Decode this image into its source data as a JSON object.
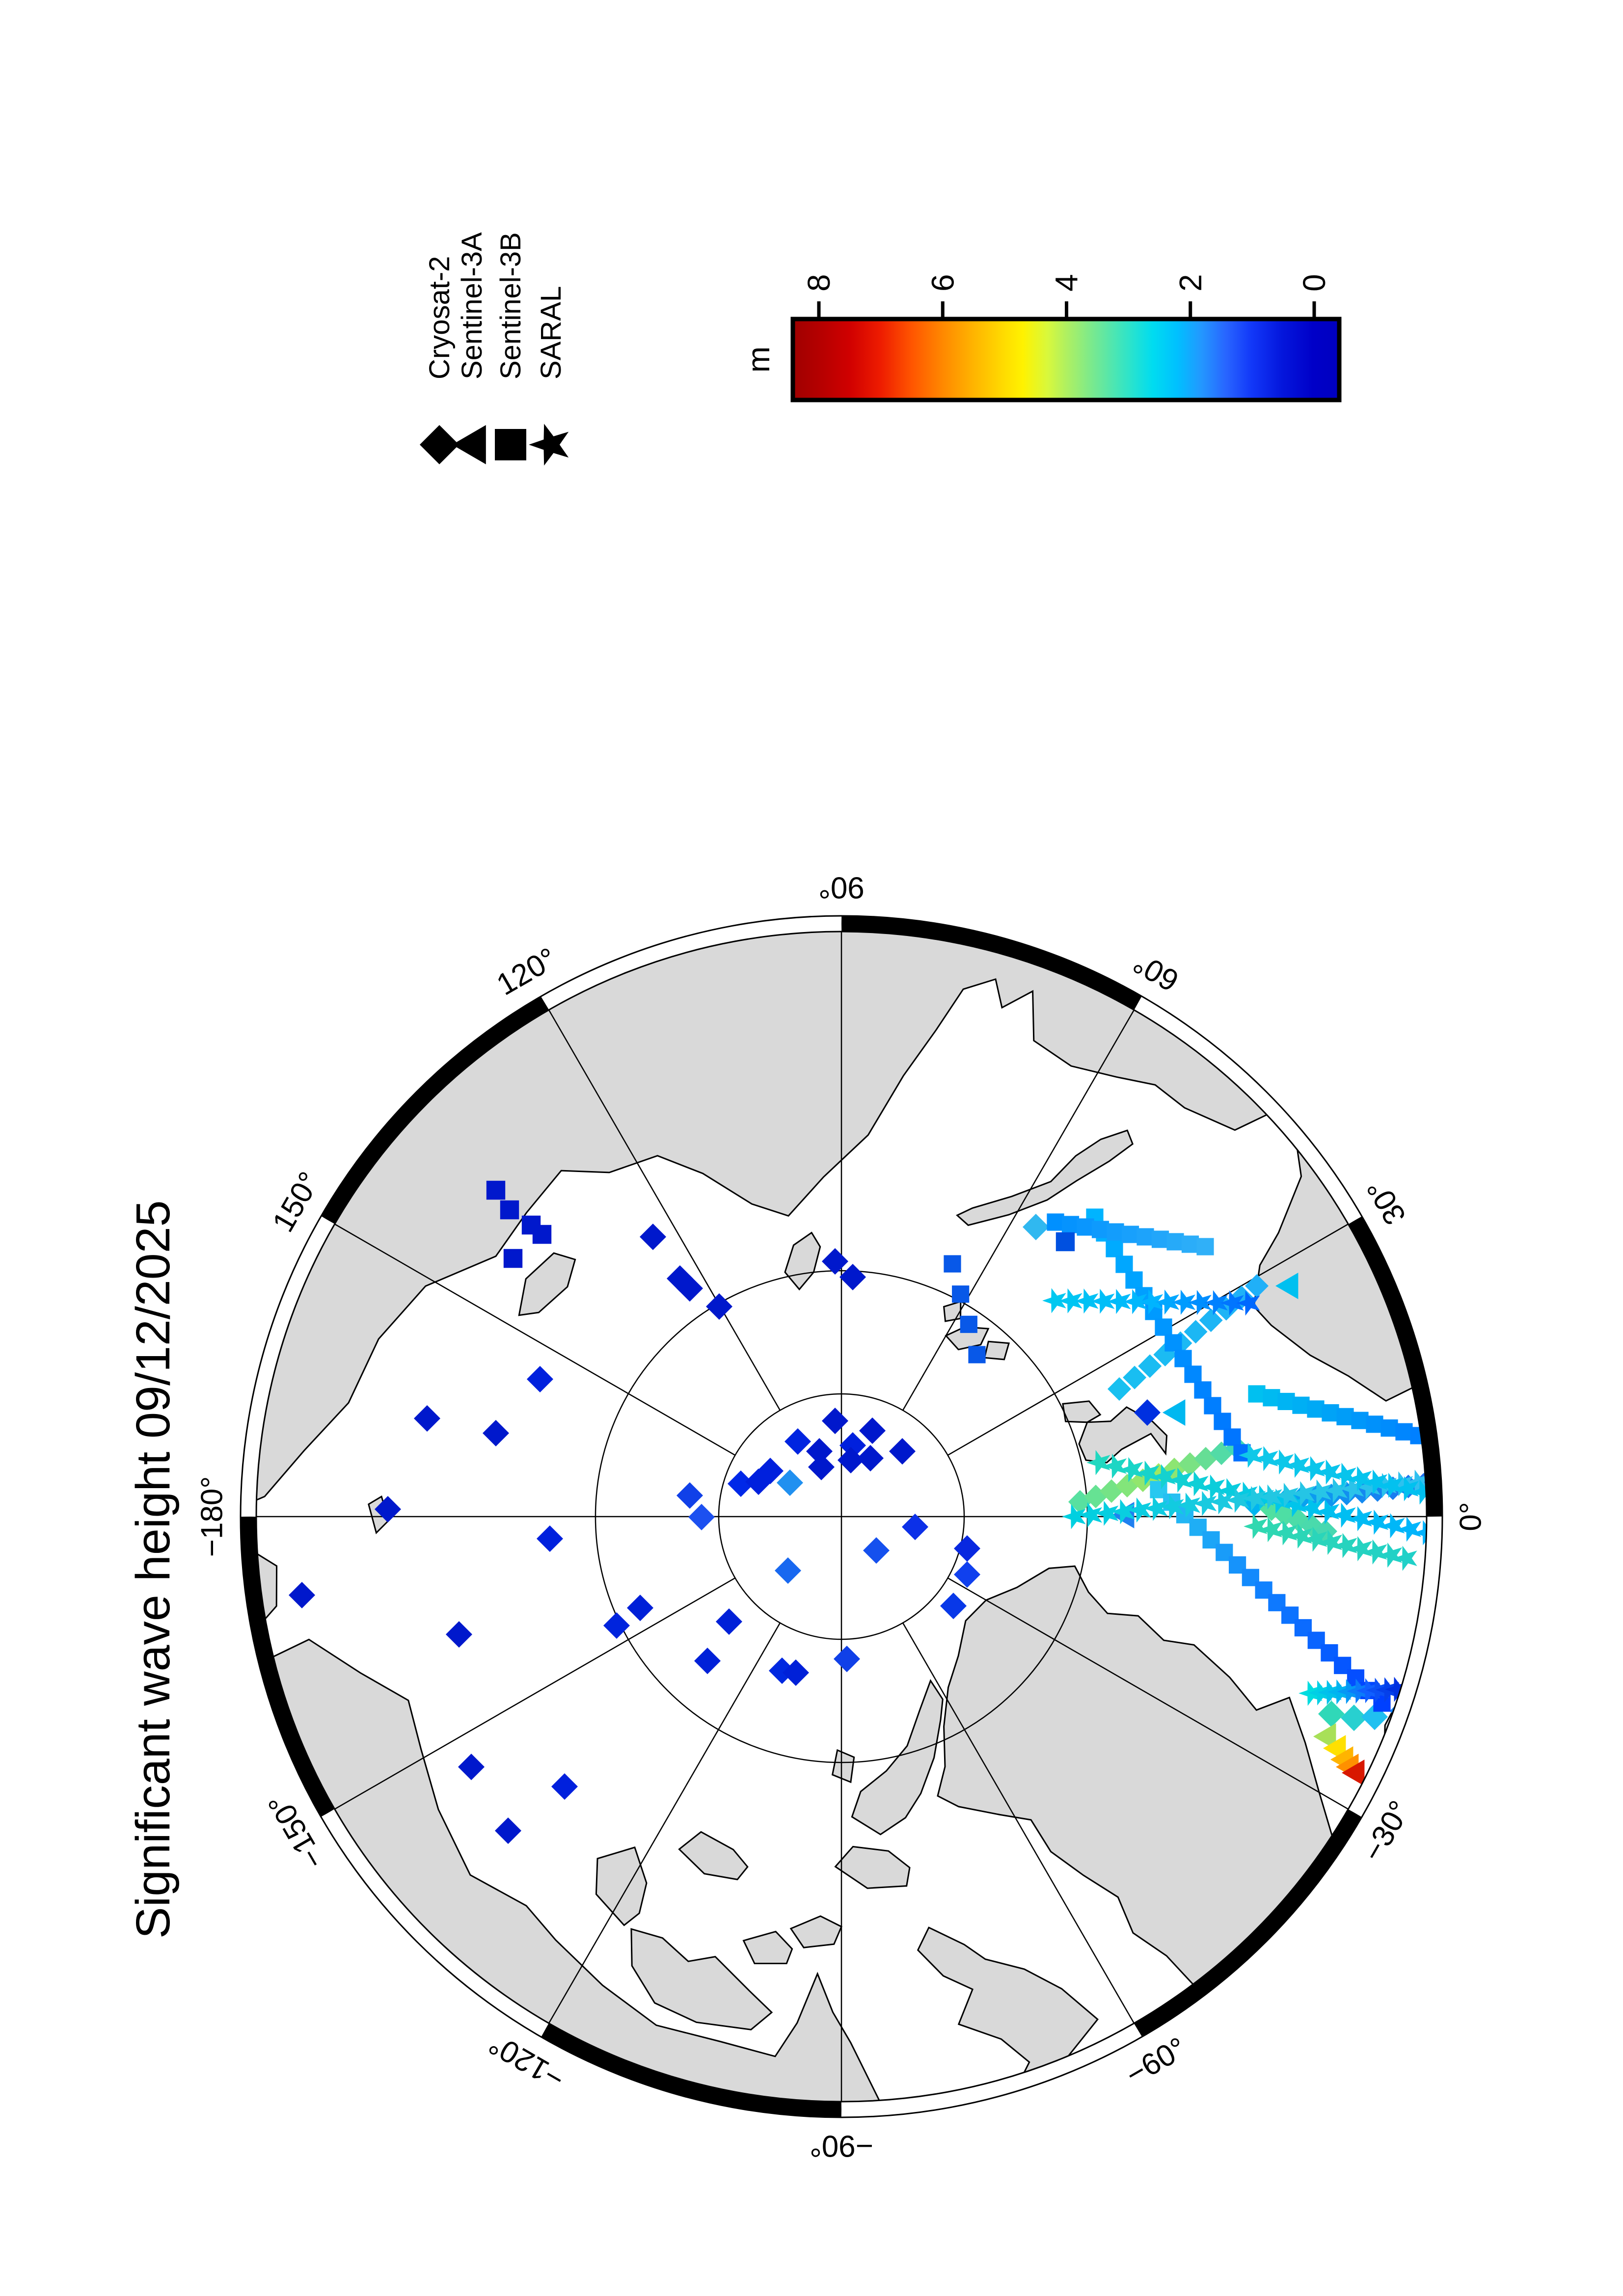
{
  "title": "Significant wave height 09/12/2025",
  "legend": {
    "entries": [
      {
        "label": "Cryosat-2",
        "symbol": "diamond"
      },
      {
        "label": "Sentinel-3A",
        "symbol": "triangle"
      },
      {
        "label": "Sentinel-3B",
        "symbol": "square"
      },
      {
        "label": "SARAL",
        "symbol": "star"
      }
    ]
  },
  "colorbar": {
    "unit": "m",
    "ticks": [
      "8",
      "6",
      "4",
      "2",
      "0"
    ],
    "tick_values": [
      8,
      6,
      4,
      2,
      0
    ],
    "value_min": 0,
    "value_max": 8,
    "stops": [
      [
        8.4,
        "#a00000"
      ],
      [
        8.0,
        "#b40000"
      ],
      [
        7.5,
        "#d00000"
      ],
      [
        7.0,
        "#ee1c00"
      ],
      [
        6.5,
        "#ff5500"
      ],
      [
        6.0,
        "#ff8800"
      ],
      [
        5.5,
        "#ffb400"
      ],
      [
        5.0,
        "#ffdc00"
      ],
      [
        4.7,
        "#fff200"
      ],
      [
        4.3,
        "#d8f83c"
      ],
      [
        4.0,
        "#b0f060"
      ],
      [
        3.5,
        "#70e896"
      ],
      [
        3.0,
        "#30e4c8"
      ],
      [
        2.6,
        "#00dcf0"
      ],
      [
        2.2,
        "#00c0ff"
      ],
      [
        1.8,
        "#2496ff"
      ],
      [
        1.4,
        "#2864ff"
      ],
      [
        1.0,
        "#1238f8"
      ],
      [
        0.5,
        "#0416dc"
      ],
      [
        0.0,
        "#0000c8"
      ],
      [
        -0.4,
        "#0000c0"
      ]
    ]
  },
  "map": {
    "longitude_labels": [
      {
        "text": "90°",
        "lon": 90,
        "rotation": -90
      },
      {
        "text": "120°",
        "lon": 120,
        "rotation": 60
      },
      {
        "text": "150°",
        "lon": 150,
        "rotation": 30
      },
      {
        "text": "−180°",
        "lon": 180,
        "rotation": 0
      },
      {
        "text": "−150°",
        "lon": -150,
        "rotation": -30
      },
      {
        "text": "−120°",
        "lon": -120,
        "rotation": -60
      },
      {
        "text": "−90°",
        "lon": -90,
        "rotation": -90
      },
      {
        "text": "−60°",
        "lon": -60,
        "rotation": 60
      },
      {
        "text": "−30°",
        "lon": -30,
        "rotation": 30
      },
      {
        "text": "0°",
        "lon": 0,
        "rotation": 0
      },
      {
        "text": "30°",
        "lon": 30,
        "rotation": -30
      },
      {
        "text": "60°",
        "lon": 60,
        "rotation": -60
      }
    ],
    "latitude_circles_deg": [
      85,
      80
    ],
    "rim_latitude_deg": 66.6
  },
  "chart_data": {
    "type": "scatter",
    "projection": "north_polar_stereographic",
    "units": "m (significant wave height), canvas px for positions",
    "series": [
      {
        "name": "Cryosat-2",
        "symbol": "diamond",
        "points": [
          [
            1783,
            1701,
            "#0018cc"
          ],
          [
            1763,
            1777,
            "#0018cc"
          ],
          [
            1733,
            1737,
            "#0020dd"
          ],
          [
            1721,
            1669,
            "#0018cc"
          ],
          [
            1707,
            1773,
            "#0018cc"
          ],
          [
            1741,
            1625,
            "#0024e0"
          ],
          [
            1689,
            1673,
            "#0018cc"
          ],
          [
            1703,
            1733,
            "#0018cc"
          ],
          [
            1721,
            1838,
            "#0018cc"
          ],
          [
            1681,
            1569,
            "#0020dd"
          ],
          [
            1657,
            1609,
            "#2090f0"
          ],
          [
            1655,
            1509,
            "#0028e8"
          ],
          [
            1659,
            1545,
            "#0020dd"
          ],
          [
            1631,
            1405,
            "#1040e8"
          ],
          [
            1587,
            1429,
            "#1c50f0"
          ],
          [
            1567,
            1864,
            "#0c30e8"
          ],
          [
            1519,
            1785,
            "#1550ee"
          ],
          [
            1523,
            1970,
            "#0828e0"
          ],
          [
            1478,
            1605,
            "#1868f0"
          ],
          [
            1402,
            1304,
            "#0020d8"
          ],
          [
            1374,
            1485,
            "#0020d8"
          ],
          [
            1366,
            1256,
            "#0024dd"
          ],
          [
            1294,
            1441,
            "#0020d8"
          ],
          [
            1274,
            1593,
            "#0028e0"
          ],
          [
            1270,
            1621,
            "#0020d8"
          ],
          [
            1298,
            1725,
            "#1040e8"
          ],
          [
            1406,
            1942,
            "#0838e8"
          ],
          [
            1470,
            1970,
            "#1040ee"
          ],
          [
            2108,
            1701,
            "#0018cc"
          ],
          [
            2076,
            1737,
            "#0018cc"
          ],
          [
            2158,
            1330,
            "#0018cc"
          ],
          [
            2073,
            1385,
            "#0018cc"
          ],
          [
            2053,
            1405,
            "#0018cc"
          ],
          [
            2016,
            1465,
            "#0018cc"
          ],
          [
            1868,
            1100,
            "#0020dd"
          ],
          [
            1758,
            1010,
            "#0018cc"
          ],
          [
            1788,
            870,
            "#0018cc"
          ],
          [
            1428,
            615,
            "#0018cc"
          ],
          [
            1603,
            790,
            "#0018cc"
          ],
          [
            1348,
            935,
            "#0018cc"
          ],
          [
            1543,
            1120,
            "#0020dd"
          ],
          [
            948,
            1035,
            "#0018cc"
          ],
          [
            1078,
            960,
            "#0018cc"
          ],
          [
            1038,
            1150,
            "#0020dd"
          ],
          [
            2178,
            2110,
            "#30b8f0"
          ],
          [
            1800,
            2337,
            "#0030e0"
          ],
          [
            1186,
            2712,
            "#30d8b8"
          ],
          [
            1178,
            2758,
            "#28d0d0"
          ],
          [
            1180,
            2800,
            "#20c0f0"
          ],
          [
            1192,
            2858,
            "#1080f8"
          ]
        ],
        "tracks": [
          {
            "from": [
              1848,
              2280
            ],
            "to": [
              2058,
              2560
            ],
            "n": 10,
            "colors": [
              "#18c0f0",
              "#20b0f8"
            ]
          },
          {
            "from": [
              1618,
              2200
            ],
            "to": [
              1728,
              2520
            ],
            "n": 11,
            "colors": [
              "#58e0a0",
              "#a0e860",
              "#40d8b8"
            ]
          },
          {
            "from": [
              1613,
              2555
            ],
            "to": [
              1653,
              2900
            ],
            "n": 12,
            "colors": [
              "#00b4f0",
              "#2070f0"
            ]
          },
          {
            "from": [
              1603,
              2590
            ],
            "to": [
              1558,
              2700
            ],
            "n": 5,
            "colors": [
              "#50e0a0",
              "#48d8b0"
            ]
          }
        ]
      },
      {
        "name": "Sentinel-3A",
        "symbol": "triangle",
        "points": [
          [
            1140,
            2702,
            "#a8e058"
          ],
          [
            1116,
            2722,
            "#ffe000"
          ],
          [
            1093,
            2737,
            "#ffb400"
          ],
          [
            1078,
            2748,
            "#ff9000"
          ],
          [
            1066,
            2760,
            "#d81800"
          ],
          [
            1591,
            2291,
            "#2080f0"
          ],
          [
            1800,
            2395,
            "#00b8f0"
          ],
          [
            2058,
            2625,
            "#00c0f0"
          ]
        ],
        "tracks": []
      },
      {
        "name": "Sentinel-3B",
        "symbol": "square",
        "points": [
          [
            2213,
            1038,
            "#0018cc"
          ],
          [
            2182,
            1082,
            "#0018cc"
          ],
          [
            2163,
            1104,
            "#0018cc"
          ],
          [
            2114,
            1045,
            "#0018cc"
          ],
          [
            2253,
            1010,
            "#0018cc"
          ],
          [
            2148,
            2170,
            "#0050e0"
          ]
        ],
        "tracks": [
          {
            "from": [
              2198,
              2230
            ],
            "to": [
              1718,
              2530
            ],
            "n": 16,
            "colors": [
              "#00b4ff",
              "#0094ff",
              "#0070ff"
            ]
          },
          {
            "from": [
              2188,
              2150
            ],
            "to": [
              2138,
              2455
            ],
            "n": 11,
            "colors": [
              "#0090ff",
              "#30b0f8"
            ]
          },
          {
            "from": [
              1838,
              2560
            ],
            "to": [
              1753,
              2890
            ],
            "n": 12,
            "colors": [
              "#00c0f0",
              "#0080ff"
            ]
          },
          {
            "from": [
              1643,
              2360
            ],
            "to": [
              1208,
              2815
            ],
            "n": 18,
            "colors": [
              "#28c8f0",
              "#0f7dff",
              "#0040ff"
            ]
          },
          {
            "from": [
              2103,
              1940
            ],
            "to": [
              1918,
              1990
            ],
            "n": 4,
            "colors": [
              "#0858e8",
              "#0858e8"
            ]
          }
        ]
      },
      {
        "name": "SARAL",
        "symbol": "star",
        "points": [],
        "tracks": [
          {
            "from": [
              2028,
              2150
            ],
            "to": [
              2023,
              2545
            ],
            "n": 13,
            "colors": [
              "#00c8f0",
              "#00b4ff",
              "#0068ff"
            ]
          },
          {
            "from": [
              1698,
              2240
            ],
            "to": [
              1548,
              2940
            ],
            "n": 22,
            "colors": [
              "#20d8c0",
              "#00c8e8",
              "#00b0ff"
            ]
          },
          {
            "from": [
              1588,
              2190
            ],
            "to": [
              1658,
              2890
            ],
            "n": 22,
            "colors": [
              "#00d0e0",
              "#20c8e0",
              "#30c0f0"
            ]
          },
          {
            "from": [
              1713,
              2550
            ],
            "to": [
              1638,
              2900
            ],
            "n": 12,
            "colors": [
              "#10c8e8",
              "#00c0f0"
            ]
          },
          {
            "from": [
              1568,
              2560
            ],
            "to": [
              1503,
              2865
            ],
            "n": 11,
            "colors": [
              "#30d8b0",
              "#20d0c8"
            ]
          },
          {
            "from": [
              1228,
              2672
            ],
            "to": [
              1236,
              2848
            ],
            "n": 10,
            "colors": [
              "#00dce0",
              "#00b4f0",
              "#1060ff",
              "#0030e0"
            ]
          }
        ]
      }
    ]
  }
}
